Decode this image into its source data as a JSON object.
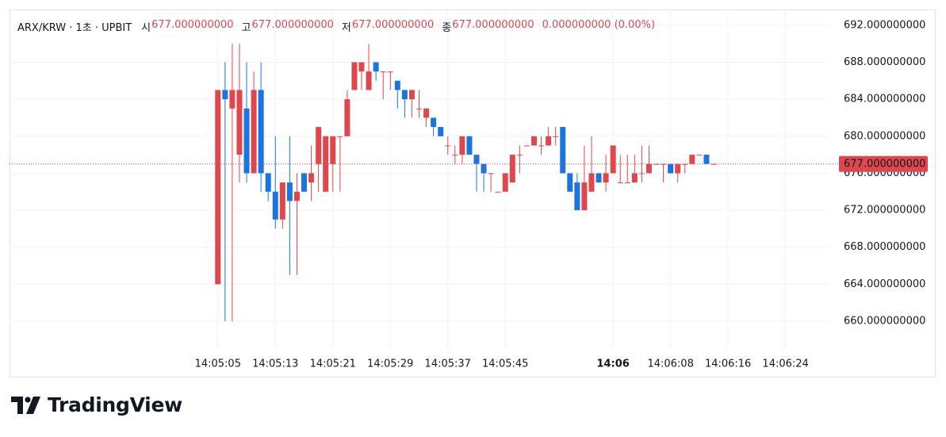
{
  "chart_data": {
    "type": "candlestick",
    "legend": {
      "symbol": "ARX/KRW · 1초 · UPBIT",
      "open_key": "시",
      "open": "677.000000000",
      "high_key": "고",
      "high": "677.000000000",
      "low_key": "저",
      "low": "677.000000000",
      "close_key": "종",
      "close": "677.000000000",
      "change": "0.000000000 (0.00%)"
    },
    "x": [
      "14:05:05",
      "14:05:06",
      "14:05:07",
      "14:05:08",
      "14:05:09",
      "14:05:10",
      "14:05:11",
      "14:05:12",
      "14:05:13",
      "14:05:14",
      "14:05:15",
      "14:05:16",
      "14:05:17",
      "14:05:18",
      "14:05:19",
      "14:05:20",
      "14:05:21",
      "14:05:22",
      "14:05:23",
      "14:05:24",
      "14:05:25",
      "14:05:26",
      "14:05:27",
      "14:05:28",
      "14:05:29",
      "14:05:30",
      "14:05:31",
      "14:05:32",
      "14:05:33",
      "14:05:34",
      "14:05:35",
      "14:05:36",
      "14:05:37",
      "14:05:38",
      "14:05:39",
      "14:05:40",
      "14:05:41",
      "14:05:42",
      "14:05:43",
      "14:05:44",
      "14:05:45",
      "14:05:46",
      "14:05:47",
      "14:05:48",
      "14:05:49",
      "14:05:50",
      "14:05:51",
      "14:05:52",
      "14:05:53",
      "14:05:54",
      "14:05:55",
      "14:05:56",
      "14:05:57",
      "14:05:58",
      "14:05:59",
      "14:06:00",
      "14:06:01",
      "14:06:02",
      "14:06:03",
      "14:06:04",
      "14:06:05",
      "14:06:06",
      "14:06:07",
      "14:06:08",
      "14:06:09",
      "14:06:10",
      "14:06:11",
      "14:06:12",
      "14:06:13",
      "14:06:14"
    ],
    "open": [
      664,
      685,
      683,
      678,
      683,
      676,
      685,
      676,
      674,
      671,
      675,
      673,
      676,
      675,
      677,
      674,
      677,
      680,
      680,
      685,
      687,
      685,
      688,
      687,
      687,
      686,
      685,
      684,
      683,
      682,
      682,
      681,
      679,
      678,
      678,
      680,
      678,
      677,
      676,
      674,
      674,
      675,
      678,
      679,
      679,
      679,
      679,
      680,
      681,
      676,
      675,
      672,
      674,
      676,
      675,
      676,
      675,
      675,
      675,
      676,
      676,
      677,
      677,
      677,
      676,
      677,
      677,
      678,
      678,
      677
    ],
    "high": [
      685,
      688,
      690,
      690,
      688,
      687,
      688,
      676,
      680,
      675,
      680,
      676,
      676,
      679,
      681,
      680,
      680,
      680,
      685,
      688,
      688,
      690,
      688,
      687,
      687,
      686,
      685,
      685,
      685,
      683,
      682,
      681,
      680,
      679,
      680,
      680,
      678,
      677,
      676,
      674,
      676,
      678,
      679,
      679,
      680,
      680,
      681,
      681,
      681,
      676,
      676,
      679,
      680,
      676,
      678,
      679,
      678,
      678,
      678,
      679,
      679,
      677,
      677,
      677,
      677,
      677,
      678,
      678,
      678,
      677
    ],
    "low": [
      664,
      660,
      660,
      675,
      675,
      676,
      674,
      673,
      670,
      670,
      665,
      665,
      674,
      673,
      674,
      674,
      674,
      674,
      680,
      685,
      685,
      685,
      686,
      684,
      685,
      683,
      682,
      682,
      682,
      681,
      680,
      680,
      678,
      677,
      677,
      678,
      674,
      674,
      674,
      674,
      674,
      675,
      676,
      679,
      679,
      678,
      679,
      679,
      676,
      674,
      672,
      672,
      674,
      675,
      674,
      676,
      675,
      675,
      675,
      675,
      676,
      677,
      675,
      676,
      675,
      676,
      677,
      678,
      677,
      677
    ],
    "close": [
      685,
      684,
      685,
      685,
      676,
      685,
      676,
      674,
      671,
      675,
      673,
      674,
      674,
      676,
      681,
      680,
      680,
      680,
      684,
      688,
      688,
      687,
      687,
      687,
      687,
      685,
      684,
      685,
      683,
      683,
      681,
      680,
      679,
      678,
      680,
      678,
      677,
      676,
      676,
      674,
      676,
      678,
      678,
      679,
      680,
      679,
      680,
      680,
      676,
      674,
      672,
      675,
      676,
      675,
      676,
      679,
      675,
      675,
      676,
      676,
      677,
      677,
      677,
      676,
      677,
      677,
      678,
      678,
      677,
      677
    ],
    "up_color": "#e0474c",
    "down_color": "#1a75e0",
    "xlim": [
      "14:04:36",
      "14:06:30"
    ],
    "xticks": [
      "14:05:05",
      "14:05:13",
      "14:05:21",
      "14:05:29",
      "14:05:37",
      "14:05:45",
      {
        "value": "14:06:00",
        "label": "14:06"
      },
      "14:06:08",
      "14:06:16",
      "14:06:24"
    ],
    "ylim": [
      657,
      693.7
    ],
    "yticks": [
      {
        "value": 660,
        "label": "660.000000000"
      },
      {
        "value": 664,
        "label": "664.000000000"
      },
      {
        "value": 668,
        "label": "668.000000000"
      },
      {
        "value": 672,
        "label": "672.000000000"
      },
      {
        "value": 676,
        "label": "676.000000000"
      },
      {
        "value": 680,
        "label": "680.000000000"
      },
      {
        "value": 684,
        "label": "684.000000000"
      },
      {
        "value": 688,
        "label": "688.000000000"
      },
      {
        "value": 692,
        "label": "692.000000000"
      }
    ],
    "grid": true,
    "last_price": {
      "value": 677,
      "label": "677.000000000"
    }
  },
  "branding": "TradingView"
}
